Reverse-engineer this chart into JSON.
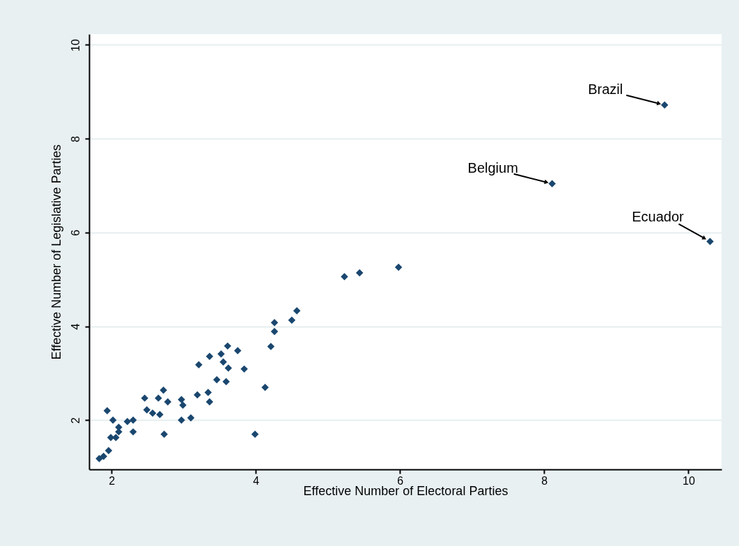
{
  "chart_data": {
    "type": "scatter",
    "xlabel": "Effective Number of Electoral Parties",
    "ylabel": "Effective Number of Legislative Parties",
    "xlim": [
      1.69,
      10.46
    ],
    "ylim": [
      0.95,
      10.23
    ],
    "xticks": [
      2,
      4,
      6,
      8,
      10
    ],
    "yticks": [
      2,
      4,
      6,
      8,
      10
    ],
    "grid": "y",
    "marker": "diamond",
    "series": [
      {
        "color": "#1a476f",
        "x": [
          1.83,
          1.89,
          1.96,
          1.94,
          2.02,
          2.22,
          2.1,
          2.1,
          1.99,
          2.06,
          2.3,
          2.3,
          2.46,
          2.49,
          2.57,
          2.67,
          2.72,
          2.65,
          2.78,
          2.73,
          2.97,
          2.99,
          2.97,
          3.1,
          3.19,
          3.21,
          3.34,
          3.36,
          3.36,
          3.46,
          3.52,
          3.55,
          3.59,
          3.61,
          3.62,
          3.75,
          3.84,
          3.99,
          4.13,
          4.21,
          4.26,
          4.26,
          4.5,
          4.57,
          5.23,
          5.44,
          5.98,
          8.11,
          9.67,
          10.3
        ],
        "values": [
          1.18,
          1.23,
          1.35,
          2.2,
          2.0,
          1.97,
          1.85,
          1.75,
          1.63,
          1.63,
          2.0,
          1.75,
          2.47,
          2.22,
          2.15,
          2.12,
          2.64,
          2.47,
          2.39,
          1.7,
          2.44,
          2.32,
          2.0,
          2.05,
          2.54,
          3.18,
          2.59,
          2.39,
          3.36,
          2.86,
          3.41,
          3.24,
          2.82,
          3.58,
          3.11,
          3.48,
          3.09,
          1.7,
          2.7,
          3.57,
          3.89,
          4.08,
          4.13,
          4.33,
          5.06,
          5.14,
          5.26,
          7.04,
          8.72,
          5.81
        ]
      }
    ],
    "annotations": [
      {
        "text": "Brazil",
        "x": 9.67,
        "y": 8.72
      },
      {
        "text": "Belgium",
        "x": 8.11,
        "y": 7.04
      },
      {
        "text": "Ecuador",
        "x": 10.3,
        "y": 5.81
      }
    ]
  }
}
